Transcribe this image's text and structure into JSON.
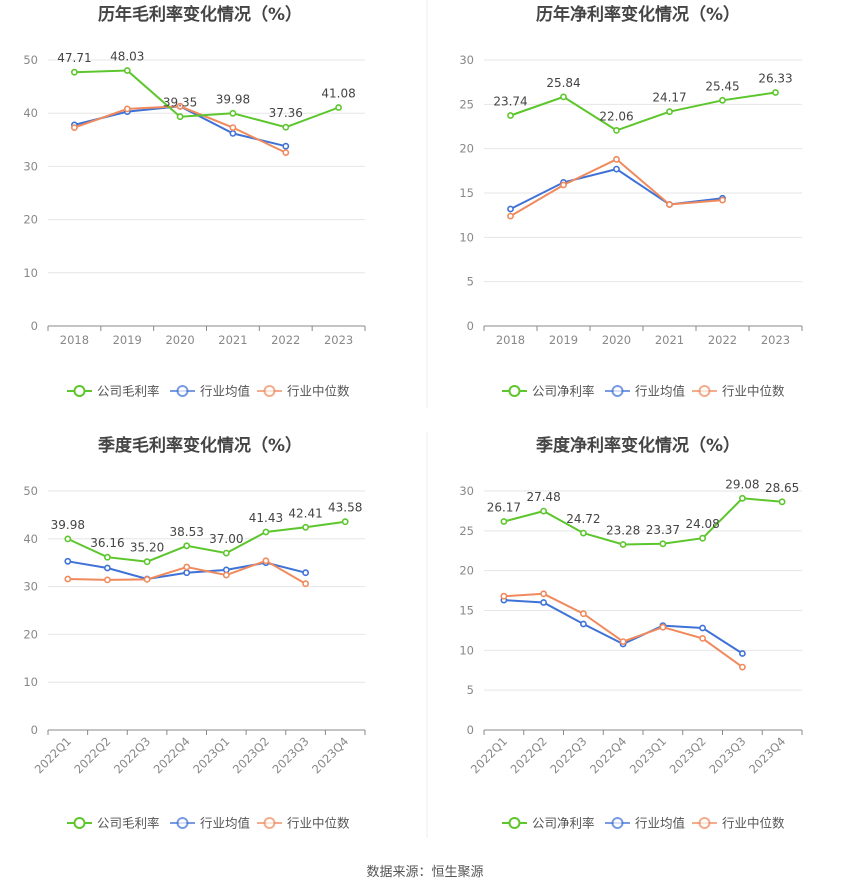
{
  "source": "数据来源：恒生聚源",
  "chart_data": [
    {
      "type": "line",
      "title": "历年毛利率变化情况（%）",
      "categories": [
        "2018",
        "2019",
        "2020",
        "2021",
        "2022",
        "2023"
      ],
      "ylim": [
        0,
        50
      ],
      "yticks": [
        "0",
        "10",
        "20",
        "30",
        "40",
        "50"
      ],
      "grid": true,
      "legend_position": "bottom",
      "series": [
        {
          "name": "公司毛利率",
          "color": "#5cc62c",
          "values": [
            47.71,
            48.03,
            39.35,
            39.98,
            37.36,
            41.08
          ],
          "labels": [
            "47.71",
            "48.03",
            "39.35",
            "39.98",
            "37.36",
            "41.08"
          ]
        },
        {
          "name": "行业均值",
          "color": "#3f72d6",
          "values": [
            37.8,
            40.3,
            41.3,
            36.2,
            33.8,
            null
          ]
        },
        {
          "name": "行业中位数",
          "color": "#f08a5d",
          "values": [
            37.3,
            40.8,
            41.3,
            37.3,
            32.6,
            null
          ]
        }
      ]
    },
    {
      "type": "line",
      "title": "历年净利率变化情况（%）",
      "categories": [
        "2018",
        "2019",
        "2020",
        "2021",
        "2022",
        "2023"
      ],
      "ylim": [
        0,
        30
      ],
      "yticks": [
        "0",
        "5",
        "10",
        "15",
        "20",
        "25",
        "30"
      ],
      "grid": true,
      "legend_position": "bottom",
      "series": [
        {
          "name": "公司净利率",
          "color": "#5cc62c",
          "values": [
            23.74,
            25.84,
            22.06,
            24.17,
            25.45,
            26.33
          ],
          "labels": [
            "23.74",
            "25.84",
            "22.06",
            "24.17",
            "25.45",
            "26.33"
          ]
        },
        {
          "name": "行业均值",
          "color": "#3f72d6",
          "values": [
            13.2,
            16.2,
            17.7,
            13.7,
            14.4,
            null
          ]
        },
        {
          "name": "行业中位数",
          "color": "#f08a5d",
          "values": [
            12.4,
            15.9,
            18.8,
            13.7,
            14.2,
            null
          ]
        }
      ]
    },
    {
      "type": "line",
      "title": "季度毛利率变化情况（%）",
      "categories": [
        "2022Q1",
        "2022Q2",
        "2022Q3",
        "2022Q4",
        "2023Q1",
        "2023Q2",
        "2023Q3",
        "2023Q4"
      ],
      "ylim": [
        0,
        50
      ],
      "yticks": [
        "0",
        "10",
        "20",
        "30",
        "40",
        "50"
      ],
      "grid": true,
      "legend_position": "bottom",
      "series": [
        {
          "name": "公司毛利率",
          "color": "#5cc62c",
          "values": [
            39.98,
            36.16,
            35.2,
            38.53,
            37.0,
            41.43,
            42.41,
            43.58
          ],
          "labels": [
            "39.98",
            "36.16",
            "35.20",
            "38.53",
            "37.00",
            "41.43",
            "42.41",
            "43.58"
          ]
        },
        {
          "name": "行业均值",
          "color": "#3f72d6",
          "values": [
            35.3,
            33.9,
            31.6,
            32.9,
            33.5,
            35.0,
            32.9,
            null
          ]
        },
        {
          "name": "行业中位数",
          "color": "#f08a5d",
          "values": [
            31.6,
            31.4,
            31.5,
            34.1,
            32.4,
            35.4,
            30.6,
            null
          ]
        }
      ]
    },
    {
      "type": "line",
      "title": "季度净利率变化情况（%）",
      "categories": [
        "2022Q1",
        "2022Q2",
        "2022Q3",
        "2022Q4",
        "2023Q1",
        "2023Q2",
        "2023Q3",
        "2023Q4"
      ],
      "ylim": [
        0,
        30
      ],
      "yticks": [
        "0",
        "5",
        "10",
        "15",
        "20",
        "25",
        "30"
      ],
      "grid": true,
      "legend_position": "bottom",
      "series": [
        {
          "name": "公司净利率",
          "color": "#5cc62c",
          "values": [
            26.17,
            27.48,
            24.72,
            23.28,
            23.37,
            24.08,
            29.08,
            28.65
          ],
          "labels": [
            "26.17",
            "27.48",
            "24.72",
            "23.28",
            "23.37",
            "24.08",
            "29.08",
            "28.65"
          ]
        },
        {
          "name": "行业均值",
          "color": "#3f72d6",
          "values": [
            16.3,
            16.0,
            13.3,
            10.8,
            13.1,
            12.8,
            9.6,
            null
          ]
        },
        {
          "name": "行业中位数",
          "color": "#f08a5d",
          "values": [
            16.8,
            17.1,
            14.6,
            11.1,
            12.9,
            11.5,
            7.9,
            null
          ]
        }
      ]
    }
  ]
}
